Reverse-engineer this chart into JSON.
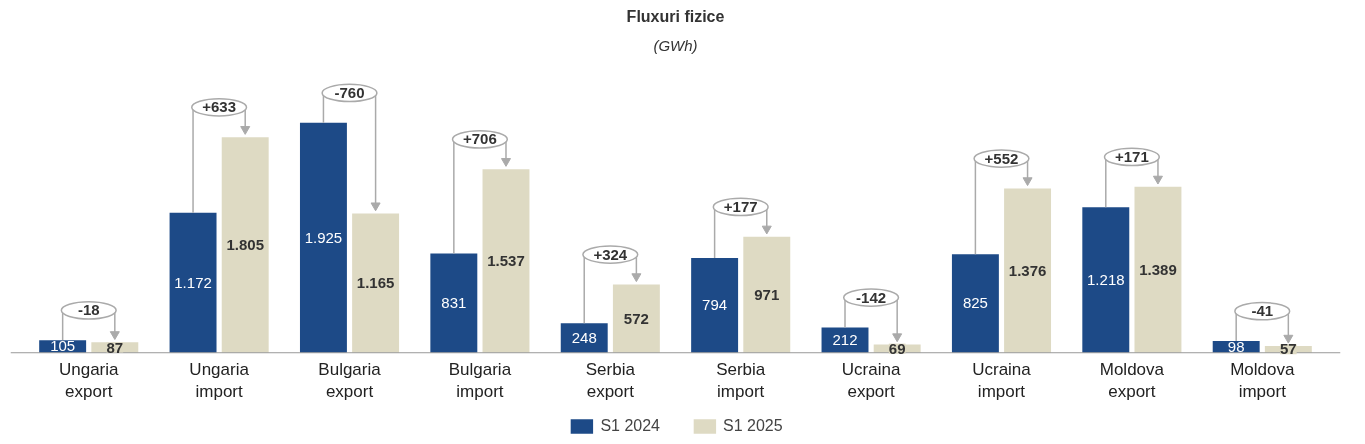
{
  "chart_data": {
    "type": "bar",
    "title": "Fluxuri fizice",
    "subtitle": "(GWh)",
    "categories": [
      "Ungaria\nexport",
      "Ungaria\nimport",
      "Bulgaria\nexport",
      "Bulgaria\nimport",
      "Serbia\nexport",
      "Serbia\nimport",
      "Ucraina\nexport",
      "Ucraina\nimport",
      "Moldova\nexport",
      "Moldova\nimport"
    ],
    "series": [
      {
        "name": "S1 2024",
        "color": "#1d4a87",
        "values": [
          105,
          1172,
          1925,
          831,
          248,
          794,
          212,
          825,
          1218,
          98
        ],
        "value_labels": [
          "105",
          "1.172",
          "1.925",
          "831",
          "248",
          "794",
          "212",
          "825",
          "1.218",
          "98"
        ]
      },
      {
        "name": "S1 2025",
        "color": "#dedac3",
        "values": [
          87,
          1805,
          1165,
          1537,
          572,
          971,
          69,
          1376,
          1389,
          57
        ],
        "value_labels": [
          "87",
          "1.805",
          "1.165",
          "1.537",
          "572",
          "971",
          "69",
          "1.376",
          "1.389",
          "57"
        ]
      }
    ],
    "annotations": [
      "-18",
      "+633",
      "-760",
      "+706",
      "+324",
      "+177",
      "-142",
      "+552",
      "+171",
      "-41"
    ],
    "legend": "bottom"
  }
}
